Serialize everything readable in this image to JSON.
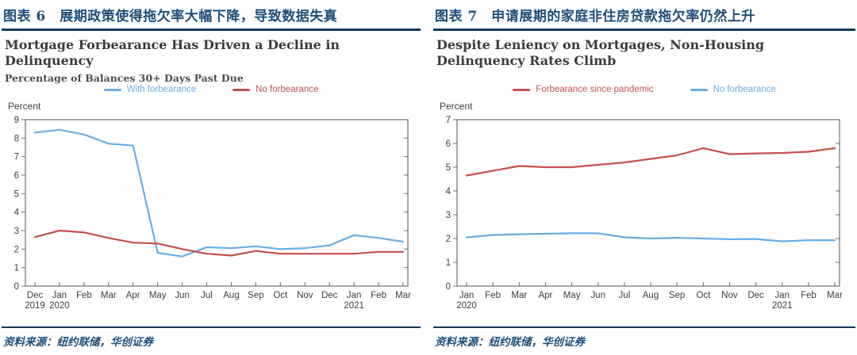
{
  "panels": [
    {
      "header": "图表 6　展期政策使得拖欠率大幅下降，导致数据失真",
      "source": "资料来源：纽约联储，华创证券"
    },
    {
      "header": "图表 7　申请展期的家庭非住房贷款拖欠率仍然上升",
      "source": "资料来源：纽约联储，华创证券"
    }
  ],
  "chart_data": [
    {
      "type": "line",
      "title": "Mortgage Forbearance Has Driven a Decline in Delinquency",
      "subtitle": "Percentage of Balances 30+ Days Past Due",
      "ylabel": "Percent",
      "ylim": [
        0,
        9
      ],
      "yticks": [
        0,
        1,
        2,
        3,
        4,
        5,
        6,
        7,
        8,
        9
      ],
      "grid": false,
      "legend_position": "top",
      "categories": [
        "Dec",
        "Jan",
        "Feb",
        "Mar",
        "Apr",
        "May",
        "Jun",
        "Jul",
        "Aug",
        "Sep",
        "Oct",
        "Nov",
        "Dec",
        "Jan",
        "Feb",
        "Mar"
      ],
      "year_labels": {
        "0": "2019",
        "1": "2020",
        "13": "2021"
      },
      "series": [
        {
          "name": "With forbearance",
          "color": "#6cace4",
          "values": [
            8.3,
            8.45,
            8.2,
            7.7,
            7.6,
            1.8,
            1.6,
            2.1,
            2.05,
            2.15,
            2.0,
            2.05,
            2.2,
            2.75,
            2.6,
            2.4
          ]
        },
        {
          "name": "No forbearance",
          "color": "#c0504d",
          "values": [
            2.65,
            3.0,
            2.9,
            2.6,
            2.35,
            2.3,
            2.0,
            1.75,
            1.65,
            1.9,
            1.75,
            1.75,
            1.75,
            1.75,
            1.85,
            1.85
          ]
        }
      ]
    },
    {
      "type": "line",
      "title": "Despite Leniency on Mortgages, Non-Housing Delinquency Rates Climb",
      "subtitle": "",
      "ylabel": "Percent",
      "ylim": [
        0,
        7
      ],
      "yticks": [
        0,
        1,
        2,
        3,
        4,
        5,
        6,
        7
      ],
      "grid": false,
      "legend_position": "top",
      "categories": [
        "Jan",
        "Feb",
        "Mar",
        "Apr",
        "May",
        "Jun",
        "Jul",
        "Aug",
        "Sep",
        "Oct",
        "Nov",
        "Dec",
        "Jan",
        "Feb",
        "Mar"
      ],
      "year_labels": {
        "0": "2020",
        "12": "2021"
      },
      "series": [
        {
          "name": "Forbearance since pandemic",
          "color": "#c9504c",
          "values": [
            4.65,
            4.85,
            5.05,
            5.0,
            5.0,
            5.1,
            5.2,
            5.35,
            5.5,
            5.8,
            5.55,
            5.58,
            5.6,
            5.65,
            5.8
          ]
        },
        {
          "name": "No forbearance",
          "color": "#6cace4",
          "values": [
            2.05,
            2.15,
            2.18,
            2.2,
            2.22,
            2.22,
            2.05,
            2.0,
            2.03,
            2.0,
            1.97,
            1.98,
            1.88,
            1.93,
            1.93
          ]
        }
      ]
    }
  ]
}
